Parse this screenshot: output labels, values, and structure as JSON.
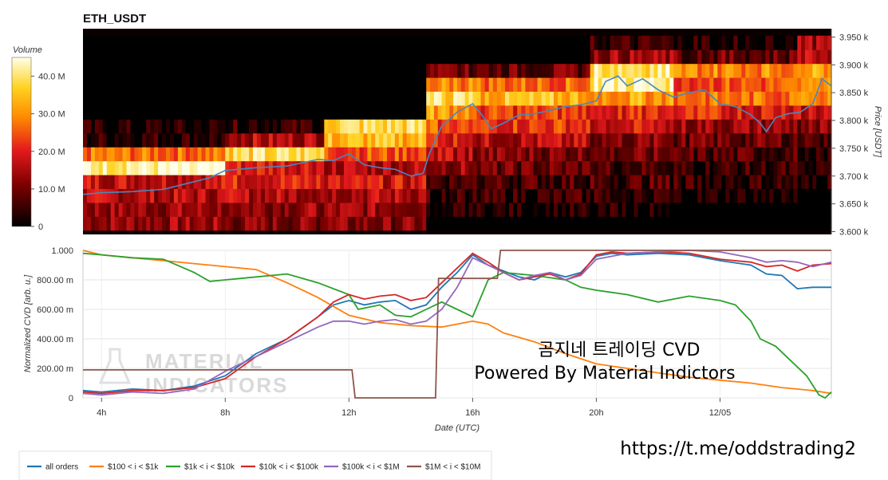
{
  "chart_data": [
    {
      "type": "heatmap",
      "title": "ETH_USDT",
      "xlabel": "",
      "ylabel": "Price [USDT]",
      "y_ticks": [
        "3.600 k",
        "3.650 k",
        "3.700 k",
        "3.750 k",
        "3.800 k",
        "3.850 k",
        "3.900 k",
        "3.950 k"
      ],
      "ylim": [
        3595,
        3965
      ],
      "colorbar": {
        "label": "Volume",
        "ticks": [
          "0",
          "10.0 M",
          "20.0 M",
          "30.0 M",
          "40.0 M"
        ],
        "max": 45
      },
      "price_bands": [
        3615,
        3640,
        3665,
        3690,
        3715,
        3740,
        3765,
        3790,
        3815,
        3840,
        3865,
        3890,
        3915,
        3940
      ],
      "segments": [
        {
          "x": [
            3.4,
            8.0
          ],
          "levels": [
            0.3,
            0.3,
            0.35,
            0.4,
            0.95,
            0.6,
            0.1,
            0.05,
            0.0,
            0.0,
            0.0,
            0.0,
            0.0,
            0.0
          ]
        },
        {
          "x": [
            8.0,
            11.2
          ],
          "levels": [
            0.25,
            0.3,
            0.35,
            0.45,
            0.45,
            0.85,
            0.35,
            0.1,
            0.0,
            0.0,
            0.0,
            0.0,
            0.0,
            0.0
          ]
        },
        {
          "x": [
            11.2,
            14.5
          ],
          "levels": [
            0.25,
            0.3,
            0.35,
            0.4,
            0.35,
            0.55,
            0.75,
            0.85,
            0.0,
            0.0,
            0.0,
            0.0,
            0.0,
            0.0
          ]
        },
        {
          "x": [
            14.5,
            16.0
          ],
          "levels": [
            0.0,
            0.05,
            0.1,
            0.15,
            0.3,
            0.35,
            0.45,
            0.55,
            0.7,
            0.85,
            0.65,
            0.2,
            0.0,
            0.0
          ]
        },
        {
          "x": [
            16.0,
            19.8
          ],
          "levels": [
            0.0,
            0.05,
            0.1,
            0.15,
            0.2,
            0.25,
            0.35,
            0.5,
            0.5,
            0.75,
            0.6,
            0.2,
            0.0,
            0.0
          ]
        },
        {
          "x": [
            19.8,
            22.5
          ],
          "levels": [
            0.0,
            0.05,
            0.1,
            0.15,
            0.15,
            0.2,
            0.25,
            0.4,
            0.45,
            0.7,
            0.95,
            0.9,
            0.3,
            0.1
          ]
        },
        {
          "x": [
            22.5,
            26.5
          ],
          "levels": [
            0.0,
            0.0,
            0.05,
            0.1,
            0.1,
            0.15,
            0.2,
            0.3,
            0.45,
            0.6,
            0.55,
            0.65,
            0.2,
            0.05
          ]
        },
        {
          "x": [
            26.5,
            27.6
          ],
          "levels": [
            0.0,
            0.0,
            0.0,
            0.05,
            0.05,
            0.1,
            0.15,
            0.25,
            0.4,
            0.6,
            0.65,
            0.7,
            0.4,
            0.3
          ]
        }
      ],
      "price_line": {
        "x": [
          3.4,
          4.0,
          5.0,
          6.0,
          7.0,
          7.5,
          8.0,
          9.0,
          10.0,
          11.0,
          11.5,
          12.0,
          12.5,
          13.0,
          13.5,
          14.0,
          14.4,
          14.6,
          15.0,
          15.5,
          16.0,
          16.3,
          16.6,
          17.0,
          17.5,
          18.0,
          18.5,
          19.0,
          19.5,
          20.0,
          20.3,
          20.7,
          21.0,
          21.5,
          22.0,
          22.5,
          23.0,
          23.5,
          24.0,
          24.5,
          25.0,
          25.3,
          25.5,
          25.8,
          26.2,
          26.6,
          27.0,
          27.3,
          27.6
        ],
        "y": [
          3667,
          3670,
          3672,
          3676,
          3690,
          3697,
          3710,
          3715,
          3718,
          3730,
          3728,
          3740,
          3720,
          3715,
          3712,
          3700,
          3705,
          3740,
          3790,
          3815,
          3830,
          3810,
          3785,
          3795,
          3810,
          3812,
          3818,
          3825,
          3828,
          3835,
          3870,
          3880,
          3862,
          3875,
          3855,
          3842,
          3850,
          3855,
          3830,
          3825,
          3810,
          3795,
          3780,
          3805,
          3812,
          3815,
          3830,
          3875,
          3862
        ]
      }
    },
    {
      "type": "line",
      "title": "",
      "xlabel": "Date (UTC)",
      "ylabel": "Normalized CVD [arb. u.]",
      "ylim": [
        0,
        1.0
      ],
      "xlim": [
        3.4,
        27.6
      ],
      "y_ticks": [
        "0",
        "200.00 m",
        "400.00 m",
        "600.00 m",
        "800.00 m",
        "1.000"
      ],
      "x_ticks": [
        "4h",
        "8h",
        "12h",
        "16h",
        "20h",
        "12/05"
      ],
      "x_tick_values": [
        4,
        8,
        12,
        16,
        20,
        24
      ],
      "series": [
        {
          "name": "all orders",
          "color": "#1f77b4",
          "x": [
            3.4,
            4.0,
            5.0,
            6.0,
            7.0,
            8.0,
            9.0,
            10.0,
            11.0,
            11.5,
            12.0,
            12.5,
            13.0,
            13.5,
            14.0,
            14.5,
            15.0,
            15.5,
            16.0,
            16.5,
            17.0,
            17.5,
            18.0,
            18.5,
            19.0,
            19.5,
            20.0,
            20.5,
            21.0,
            22.0,
            23.0,
            24.0,
            25.0,
            25.5,
            26.0,
            26.5,
            27.0,
            27.6
          ],
          "y": [
            0.05,
            0.04,
            0.06,
            0.05,
            0.08,
            0.15,
            0.3,
            0.4,
            0.55,
            0.63,
            0.66,
            0.63,
            0.65,
            0.66,
            0.6,
            0.63,
            0.75,
            0.85,
            0.97,
            0.9,
            0.86,
            0.82,
            0.8,
            0.85,
            0.82,
            0.85,
            0.96,
            0.98,
            0.97,
            0.98,
            0.97,
            0.93,
            0.9,
            0.84,
            0.83,
            0.74,
            0.75,
            0.75
          ]
        },
        {
          "name": "$100 < i < $1k",
          "color": "#ff7f0e",
          "x": [
            3.4,
            4.0,
            5.0,
            6.0,
            7.0,
            8.0,
            9.0,
            10.0,
            11.0,
            12.0,
            13.0,
            14.0,
            15.0,
            16.0,
            16.5,
            17.0,
            18.0,
            19.0,
            20.0,
            21.0,
            22.0,
            23.0,
            24.0,
            25.0,
            26.0,
            27.0,
            27.6
          ],
          "y": [
            1.0,
            0.97,
            0.95,
            0.93,
            0.91,
            0.89,
            0.87,
            0.78,
            0.68,
            0.56,
            0.51,
            0.49,
            0.48,
            0.52,
            0.5,
            0.44,
            0.38,
            0.3,
            0.23,
            0.2,
            0.17,
            0.14,
            0.12,
            0.1,
            0.07,
            0.05,
            0.03
          ]
        },
        {
          "name": "$1k < i < $10k",
          "color": "#2ca02c",
          "x": [
            3.4,
            4.0,
            5.0,
            6.0,
            7.0,
            7.5,
            8.0,
            9.0,
            10.0,
            11.0,
            12.0,
            12.3,
            13.0,
            13.5,
            14.0,
            14.5,
            15.0,
            15.5,
            16.0,
            16.5,
            17.0,
            18.0,
            19.0,
            19.5,
            20.0,
            21.0,
            22.0,
            23.0,
            24.0,
            24.5,
            25.0,
            25.3,
            25.8,
            26.3,
            26.8,
            27.2,
            27.4,
            27.6
          ],
          "y": [
            0.98,
            0.97,
            0.95,
            0.94,
            0.85,
            0.79,
            0.8,
            0.82,
            0.84,
            0.78,
            0.7,
            0.6,
            0.63,
            0.56,
            0.55,
            0.6,
            0.65,
            0.6,
            0.55,
            0.8,
            0.85,
            0.83,
            0.8,
            0.75,
            0.73,
            0.7,
            0.65,
            0.69,
            0.66,
            0.63,
            0.52,
            0.4,
            0.35,
            0.25,
            0.15,
            0.02,
            0.0,
            0.04
          ]
        },
        {
          "name": "$10k < i < $100k",
          "color": "#d62728",
          "x": [
            3.4,
            4.0,
            5.0,
            6.0,
            7.0,
            8.0,
            9.0,
            10.0,
            11.0,
            11.5,
            12.0,
            12.5,
            13.0,
            13.5,
            14.0,
            14.5,
            15.0,
            15.5,
            16.0,
            16.5,
            17.0,
            17.5,
            18.0,
            18.5,
            19.0,
            19.5,
            20.0,
            20.5,
            21.0,
            22.0,
            23.0,
            24.0,
            25.0,
            25.5,
            26.0,
            26.5,
            27.0,
            27.6
          ],
          "y": [
            0.04,
            0.03,
            0.05,
            0.05,
            0.07,
            0.13,
            0.28,
            0.4,
            0.55,
            0.65,
            0.7,
            0.67,
            0.69,
            0.7,
            0.66,
            0.68,
            0.78,
            0.88,
            0.98,
            0.92,
            0.85,
            0.8,
            0.82,
            0.84,
            0.8,
            0.84,
            0.97,
            0.99,
            0.98,
            0.99,
            0.98,
            0.94,
            0.92,
            0.89,
            0.9,
            0.86,
            0.9,
            0.91
          ]
        },
        {
          "name": "$100k < i < $1M",
          "color": "#9467bd",
          "x": [
            3.4,
            4.0,
            5.0,
            6.0,
            7.0,
            8.0,
            9.0,
            10.0,
            11.0,
            11.5,
            12.0,
            12.5,
            13.0,
            13.5,
            14.0,
            14.5,
            15.0,
            15.5,
            16.0,
            16.5,
            17.0,
            17.5,
            18.0,
            18.5,
            19.0,
            19.5,
            20.0,
            20.5,
            21.0,
            22.0,
            23.0,
            24.0,
            25.0,
            25.5,
            26.0,
            26.5,
            27.0,
            27.6
          ],
          "y": [
            0.03,
            0.02,
            0.04,
            0.03,
            0.06,
            0.18,
            0.28,
            0.38,
            0.48,
            0.52,
            0.52,
            0.5,
            0.52,
            0.53,
            0.5,
            0.52,
            0.6,
            0.75,
            0.95,
            0.9,
            0.85,
            0.8,
            0.83,
            0.85,
            0.8,
            0.83,
            0.94,
            0.96,
            0.98,
            0.99,
            1.0,
            0.99,
            0.95,
            0.92,
            0.93,
            0.92,
            0.89,
            0.92
          ]
        },
        {
          "name": "$1M < i < $10M",
          "color": "#8c564b",
          "x": [
            3.4,
            12.1,
            12.2,
            14.8,
            14.9,
            16.8,
            16.9,
            27.6
          ],
          "y": [
            0.19,
            0.19,
            0.0,
            0.0,
            0.81,
            0.81,
            1.0,
            1.0
          ]
        }
      ]
    }
  ],
  "annotations": {
    "title_kr": "곰지네 트레이딩 CVD",
    "powered": "Powered By Material Indictors",
    "link": "https://t.me/oddstrading2"
  }
}
